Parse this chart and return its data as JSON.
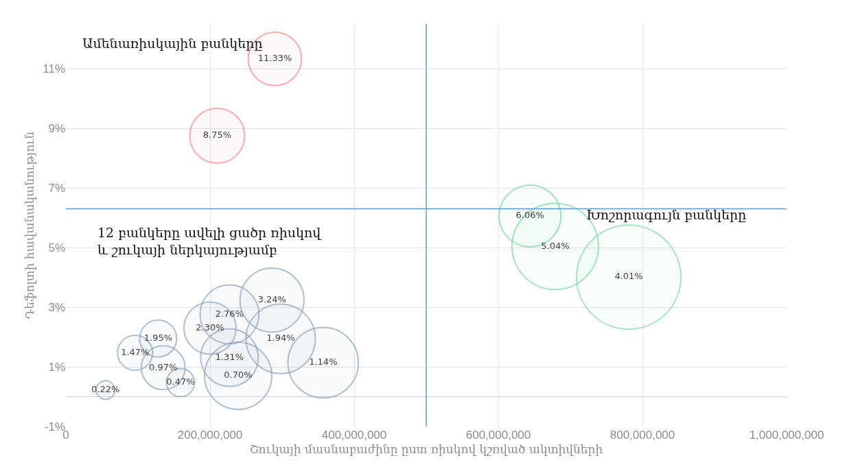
{
  "chart_data": {
    "type": "bubble",
    "xlabel": "Շուկայի մասնաբաժինը ըստ ռիսկով կշռված ակտիվների",
    "ylabel": "Դեֆոլտի հավանականություն",
    "xlim": [
      0,
      1000000000
    ],
    "xticks": [
      0,
      {
        "value": 200000000,
        "label": "200,000,000"
      },
      {
        "value": 400000000,
        "label": "400,000,000"
      },
      {
        "value": 600000000,
        "label": "600,000,000"
      },
      {
        "value": 800000000,
        "label": "800,000,000"
      },
      {
        "value": 1000000000,
        "label": "1,000,000,000"
      }
    ],
    "ylim": [
      -1,
      12.5
    ],
    "yticks": [
      {
        "value": -1,
        "label": "-1%"
      },
      {
        "value": 1,
        "label": "1%"
      },
      {
        "value": 3,
        "label": "3%"
      },
      {
        "value": 5,
        "label": "5%"
      },
      {
        "value": 7,
        "label": "7%"
      },
      {
        "value": 9,
        "label": "9%"
      },
      {
        "value": 11,
        "label": "11%"
      }
    ],
    "grid": true,
    "series": [
      {
        "color": "#f4888a",
        "x": [
          290000000,
          210000000
        ],
        "values": [
          11.33,
          8.75
        ],
        "sizes": [
          0.263,
          0.277
        ],
        "value_labels": [
          "11.33%",
          "8.75%"
        ]
      },
      {
        "color": "#7fd6a3",
        "x": [
          644000000,
          679000000,
          781000000
        ],
        "values": [
          6.06,
          5.04,
          4.01
        ],
        "sizes": [
          0.351,
          0.687,
          1
        ],
        "value_labels": [
          "6.06%",
          "5.04%",
          "4.01%"
        ]
      },
      {
        "color": "#8ca3bd",
        "x": [
          55000000,
          96000000,
          128000000,
          135000000,
          159000000,
          200000000,
          227000000,
          227000000,
          239000000,
          286000000,
          298000000,
          357000000
        ],
        "values": [
          0.22,
          1.47,
          1.95,
          0.97,
          0.47,
          2.3,
          2.76,
          1.31,
          0.7,
          3.24,
          1.94,
          1.14
        ],
        "sizes": [
          0.032,
          0.113,
          0.126,
          0.177,
          0.073,
          0.25,
          0.32,
          0.305,
          0.416,
          0.376,
          0.443,
          0.457
        ],
        "value_labels": [
          "0.22%",
          "1.47%",
          "1.95%",
          "0.97%",
          "0.47%",
          "2.30%",
          "2.76%",
          "1.31%",
          "0.70%",
          "3.24%",
          "1.94%",
          "1.14%"
        ]
      }
    ],
    "ref_lines": [
      {
        "axis": "x",
        "value": 500000000,
        "color": "#5b9bd5"
      },
      {
        "axis": "y",
        "value": 6.3,
        "color": "#5b9bd5"
      }
    ],
    "annotations": [
      "Ամենառիսկային բանկերը",
      "12 բանկերը ավելի ցածր ռիսկով\nև շուկայի ներկայությամբ",
      "Խոշորագույն բանկերը"
    ]
  }
}
